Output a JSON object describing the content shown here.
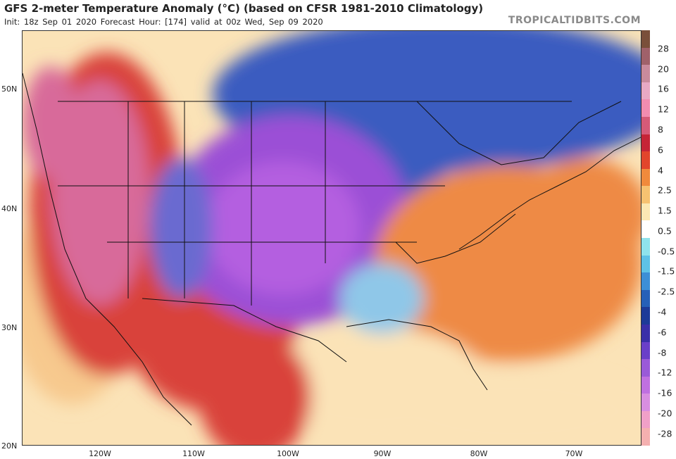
{
  "header": {
    "title": "GFS 2-meter Temperature Anomaly (°C) (based on CFSR 1981-2010 Climatology)",
    "subtitle": "Init: 18z Sep 01 2020   Forecast Hour: [174]   valid at 00z Wed, Sep 09 2020",
    "brand": "TROPICALTIDBITS.COM"
  },
  "axes": {
    "latitude_labels": [
      "50N",
      "40N",
      "30N",
      "20N"
    ],
    "longitude_labels": [
      "120W",
      "110W",
      "100W",
      "90W",
      "80W",
      "70W"
    ]
  },
  "colorbar": {
    "labels": [
      "28",
      "20",
      "16",
      "12",
      "8",
      "6",
      "4",
      "2.5",
      "1.5",
      "0.5",
      "-0.5",
      "-1.5",
      "-2.5",
      "-4",
      "-6",
      "-8",
      "-12",
      "-16",
      "-20",
      "-28"
    ],
    "colors": [
      "#7a4f3a",
      "#a0616a",
      "#c98a9c",
      "#e8a9c4",
      "#f28cb0",
      "#d65a78",
      "#c62436",
      "#e2452c",
      "#f08a3c",
      "#f6c271",
      "#fbe8b4",
      "#ffffff",
      "#8fe3ec",
      "#5ec2e6",
      "#3d8fd6",
      "#2660b8",
      "#1d3a98",
      "#3a2fa8",
      "#6a3fc8",
      "#9a5ad8",
      "#c070e0",
      "#d88ee0",
      "#f0a0c8",
      "#f4b0b0"
    ]
  },
  "map": {
    "colors": {
      "ocean_warm": "#f7c98e",
      "ocean_pale": "#fbe3b7",
      "west_red": "#d9433a",
      "west_pink": "#d86a9a",
      "plains_purple": "#9b4fd6",
      "plains_violet": "#b45ee0",
      "north_blue": "#3a5cc0",
      "east_orange": "#ee8a45",
      "coastlines": "#111111"
    }
  }
}
